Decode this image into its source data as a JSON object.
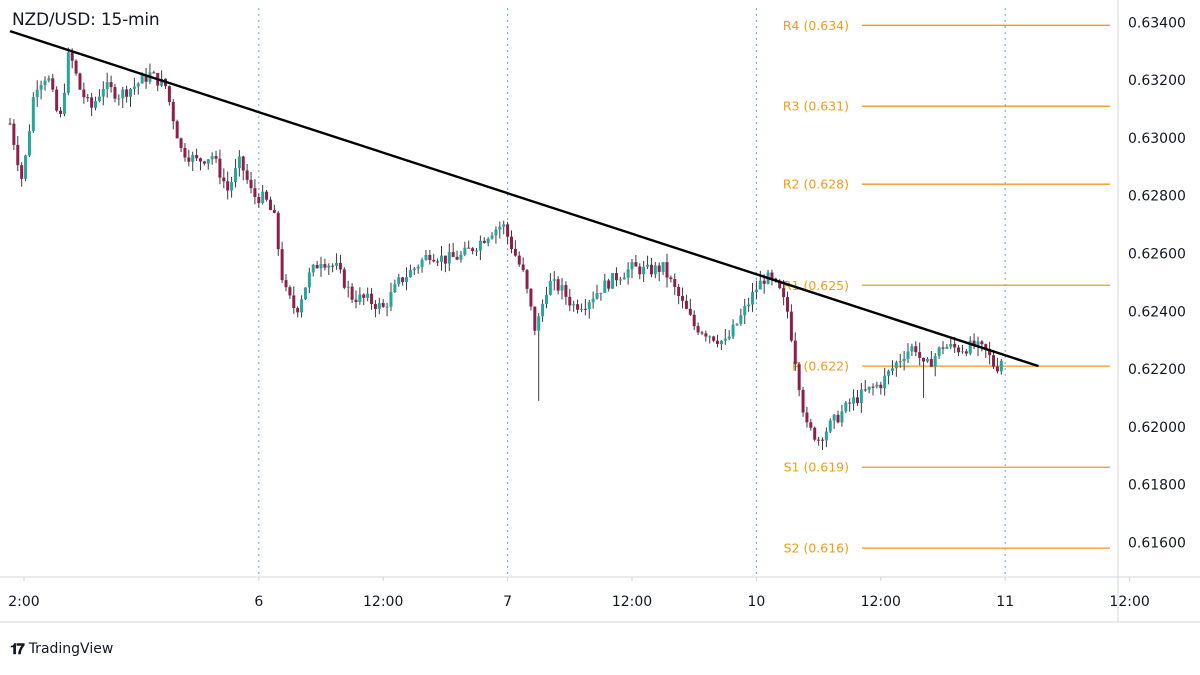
{
  "header": {
    "title": "NZD/USD: 15-min"
  },
  "branding": {
    "logo_text": "17",
    "name": "TradingView"
  },
  "colors": {
    "up": "#26a69a",
    "down": "#8e1f4a",
    "wick": "#3b3b3b",
    "level": "#f7941d",
    "level_label": "#f39c12",
    "trendline": "#000000",
    "session_divider": "#5aa7e6",
    "axis": "#d1d4dc"
  },
  "chart_data": {
    "type": "candlestick",
    "title": "NZD/USD: 15-min",
    "ylim": [
      0.6148,
      0.6345
    ],
    "y_ticks": [
      "0.63400",
      "0.63200",
      "0.63000",
      "0.62800",
      "0.62600",
      "0.62400",
      "0.62200",
      "0.62000",
      "0.61800",
      "0.61600"
    ],
    "y_tick_values": [
      0.634,
      0.632,
      0.63,
      0.628,
      0.626,
      0.624,
      0.622,
      0.62,
      0.618,
      0.616
    ],
    "x_ticks": [
      "2:00",
      "6",
      "12:00",
      "7",
      "12:00",
      "10",
      "12:00",
      "11",
      "12:00"
    ],
    "x_tick_hours": [
      0,
      16,
      24,
      32,
      40,
      48,
      56,
      64,
      72
    ],
    "session_dividers_hours": [
      16,
      32,
      48,
      64
    ],
    "x_range_hours": [
      0,
      71.5
    ],
    "levels": [
      {
        "label": "R4 (0.634)",
        "value": 0.6339
      },
      {
        "label": "R3 (0.631)",
        "value": 0.6311
      },
      {
        "label": "R2 (0.628)",
        "value": 0.6284
      },
      {
        "label": "R1 (0.625)",
        "value": 0.6249
      },
      {
        "label": "P (0.622)",
        "value": 0.6221
      },
      {
        "label": "S1 (0.619)",
        "value": 0.6186
      },
      {
        "label": "S2 (0.616)",
        "value": 0.6158
      }
    ],
    "levels_start_hour": 55.5,
    "trendline": {
      "from": [
        0,
        0.6337
      ],
      "to": [
        65.5,
        0.6221
      ]
    },
    "price_path": [
      [
        0,
        0.6305
      ],
      [
        0.8,
        0.6285
      ],
      [
        1.6,
        0.6318
      ],
      [
        2.4,
        0.6322
      ],
      [
        3.2,
        0.6305
      ],
      [
        3.8,
        0.633
      ],
      [
        4.5,
        0.6317
      ],
      [
        5.2,
        0.631
      ],
      [
        6.0,
        0.6318
      ],
      [
        7.0,
        0.6315
      ],
      [
        8.0,
        0.6318
      ],
      [
        9.0,
        0.6322
      ],
      [
        10.0,
        0.6318
      ],
      [
        11.0,
        0.6296
      ],
      [
        12.0,
        0.6292
      ],
      [
        13.0,
        0.6294
      ],
      [
        14.0,
        0.6282
      ],
      [
        14.8,
        0.6292
      ],
      [
        15.6,
        0.628
      ],
      [
        16.4,
        0.6279
      ],
      [
        17.0,
        0.6272
      ],
      [
        17.6,
        0.6248
      ],
      [
        18.4,
        0.624
      ],
      [
        19.2,
        0.6252
      ],
      [
        20.0,
        0.6258
      ],
      [
        21.0,
        0.6255
      ],
      [
        22.0,
        0.6245
      ],
      [
        23.0,
        0.6244
      ],
      [
        24.0,
        0.6241
      ],
      [
        25.0,
        0.625
      ],
      [
        26.0,
        0.6255
      ],
      [
        27.0,
        0.626
      ],
      [
        28.0,
        0.6258
      ],
      [
        29.0,
        0.6259
      ],
      [
        30.0,
        0.6263
      ],
      [
        31.0,
        0.6268
      ],
      [
        31.7,
        0.627
      ],
      [
        32.3,
        0.6262
      ],
      [
        33.0,
        0.6253
      ],
      [
        33.8,
        0.6233
      ],
      [
        34.6,
        0.625
      ],
      [
        35.4,
        0.6248
      ],
      [
        36.2,
        0.6242
      ],
      [
        37.0,
        0.6243
      ],
      [
        38.0,
        0.6248
      ],
      [
        39.0,
        0.6252
      ],
      [
        40.0,
        0.6255
      ],
      [
        41.0,
        0.6254
      ],
      [
        42.0,
        0.6255
      ],
      [
        43.0,
        0.6245
      ],
      [
        44.0,
        0.6235
      ],
      [
        45.0,
        0.6232
      ],
      [
        46.0,
        0.6229
      ],
      [
        47.0,
        0.6238
      ],
      [
        48.0,
        0.6248
      ],
      [
        48.6,
        0.6252
      ],
      [
        49.4,
        0.6248
      ],
      [
        50.0,
        0.624
      ],
      [
        50.6,
        0.622
      ],
      [
        51.2,
        0.62
      ],
      [
        52.0,
        0.6196
      ],
      [
        53.0,
        0.6202
      ],
      [
        54.0,
        0.6208
      ],
      [
        55.0,
        0.6212
      ],
      [
        56.0,
        0.6215
      ],
      [
        57.0,
        0.6222
      ],
      [
        57.6,
        0.6226
      ],
      [
        58.2,
        0.6228
      ],
      [
        58.8,
        0.622
      ],
      [
        59.4,
        0.6224
      ],
      [
        60.0,
        0.6228
      ],
      [
        61.0,
        0.6227
      ],
      [
        62.0,
        0.6228
      ],
      [
        62.8,
        0.6226
      ],
      [
        63.4,
        0.622
      ],
      [
        63.8,
        0.6224
      ]
    ],
    "spikes": [
      {
        "hour": 33.9,
        "low": 0.6209
      },
      {
        "hour": 58.8,
        "low": 0.621
      },
      {
        "hour": 1.0,
        "low": 0.6285
      }
    ]
  }
}
